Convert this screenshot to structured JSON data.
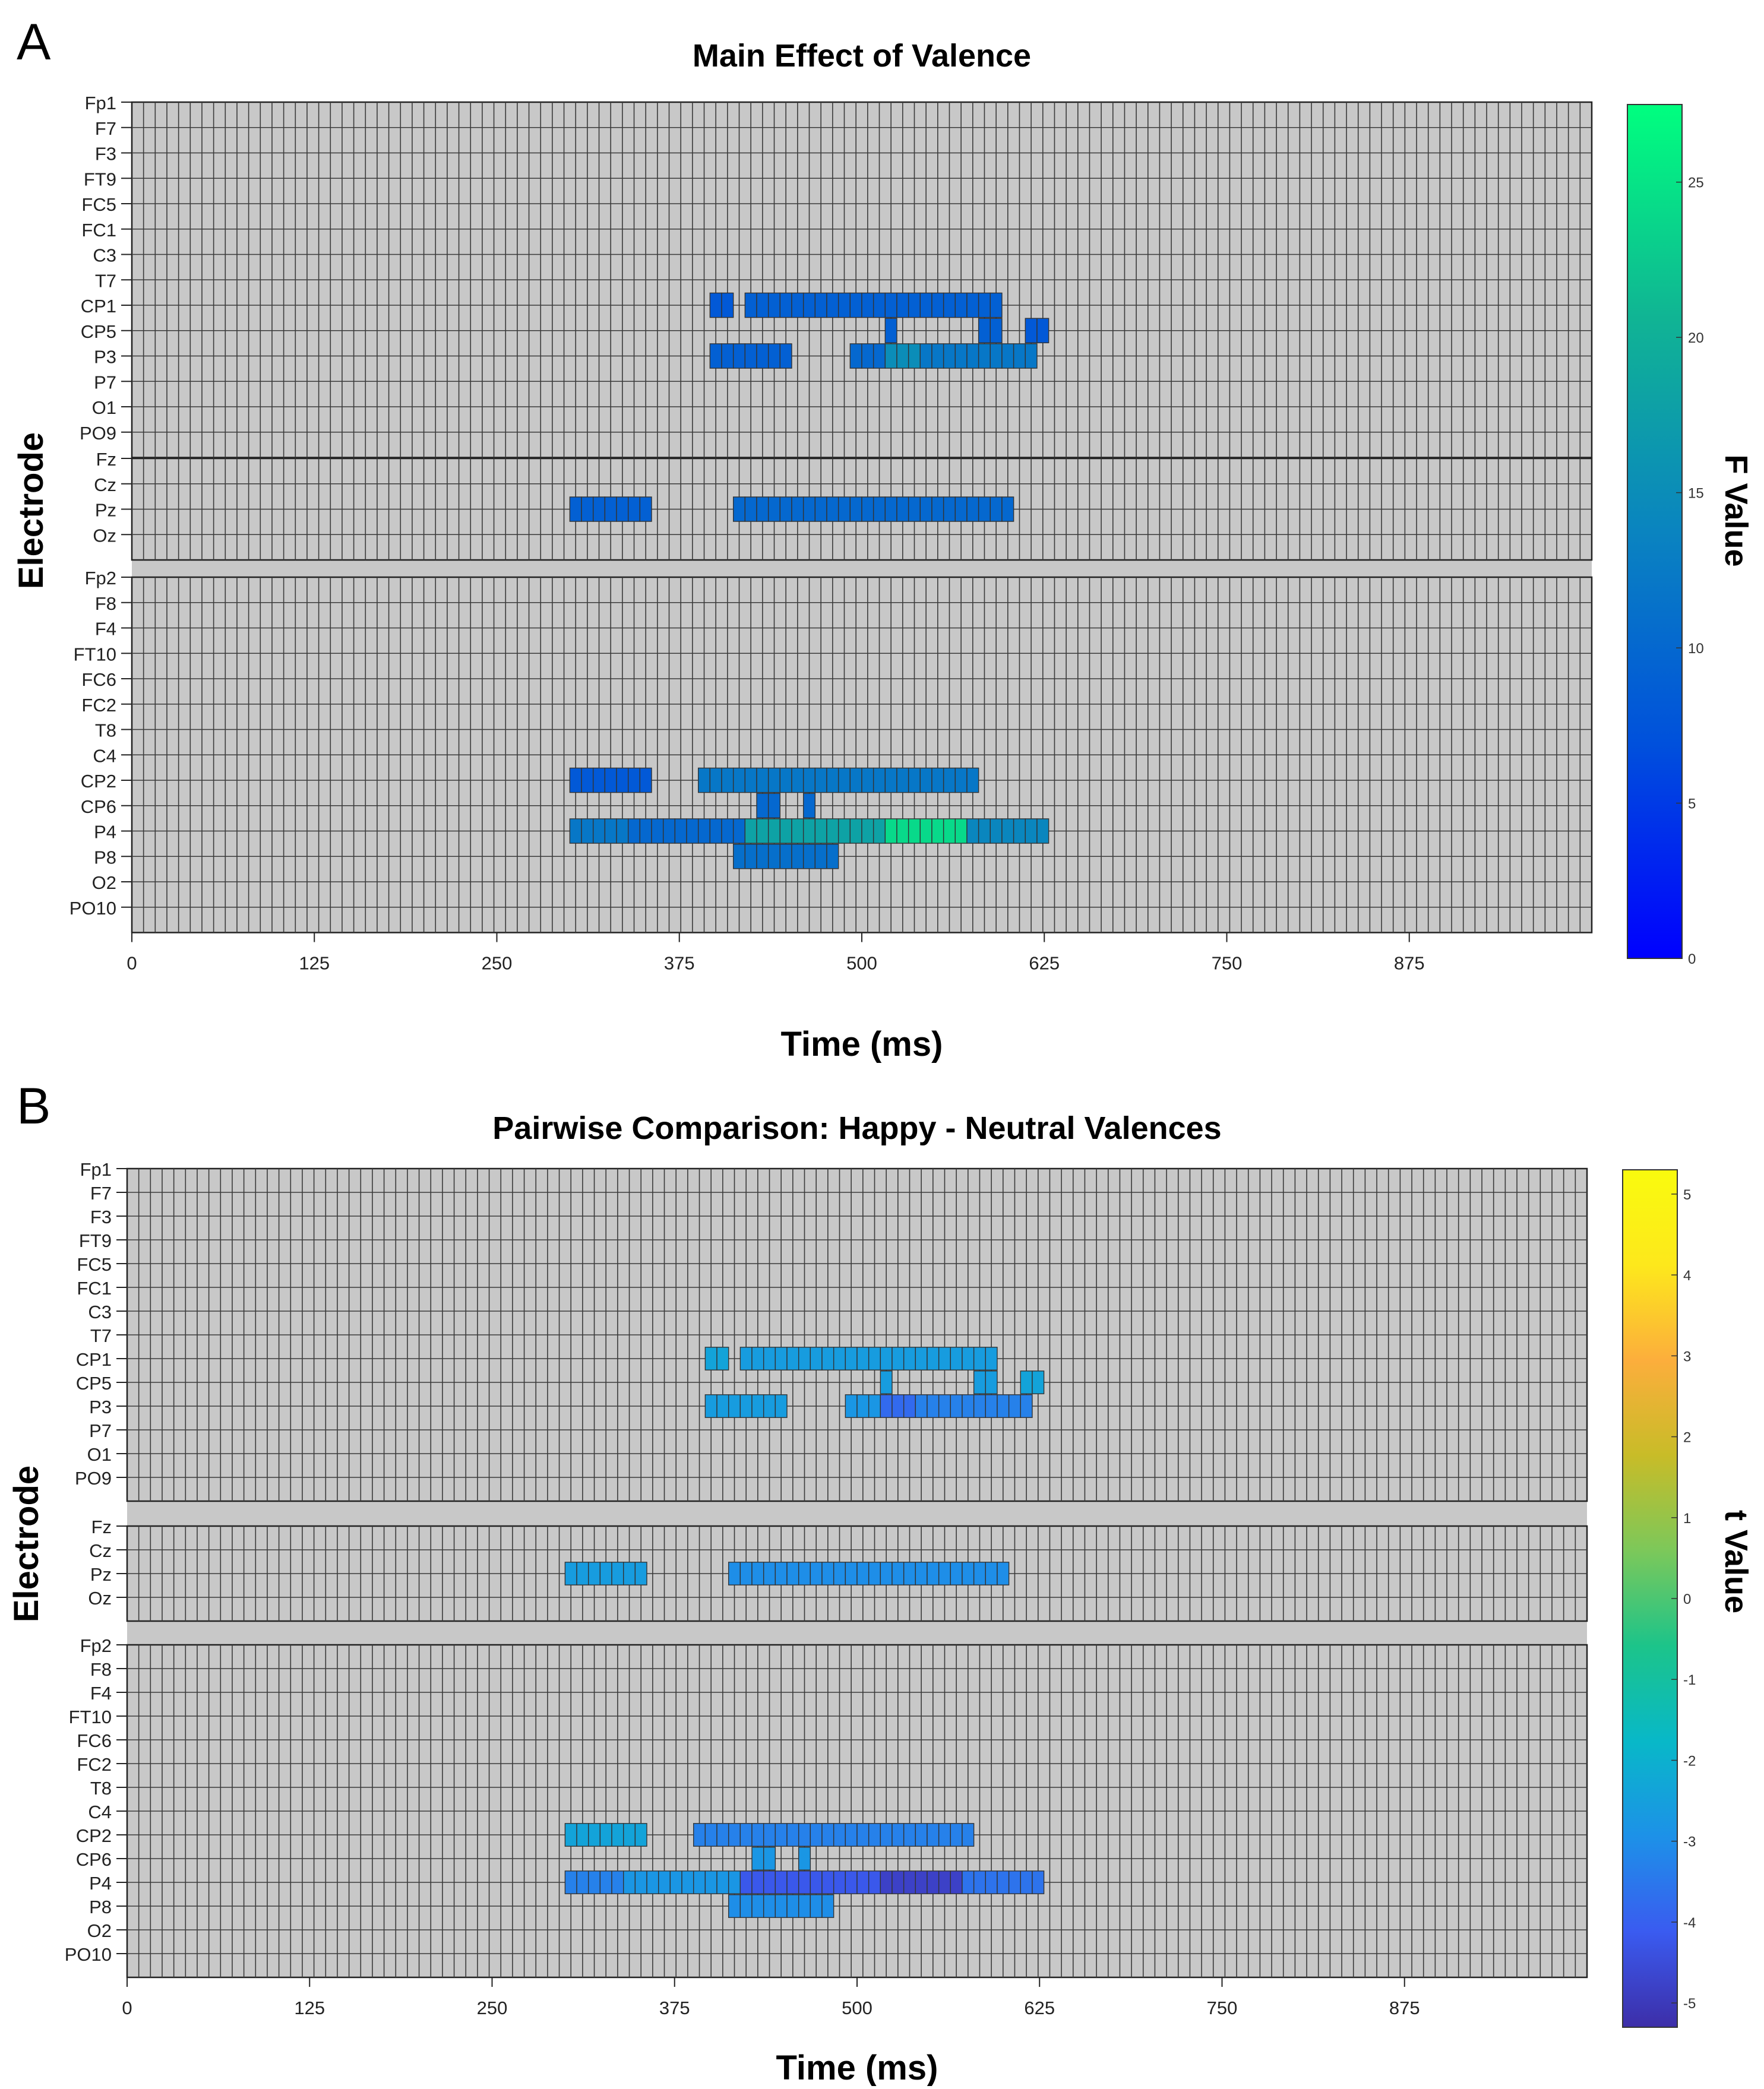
{
  "chart_data": [
    {
      "type": "heatmap",
      "panel_label": "A",
      "title": "Main Effect of Valence",
      "xlabel": "Time (ms)",
      "ylabel": "Electrode",
      "x_ticks": [
        "0",
        "125",
        "250",
        "375",
        "500",
        "625",
        "750",
        "875"
      ],
      "xlim": [
        0,
        1000
      ],
      "time_bin_ms": 8,
      "groups": [
        [
          "Fp1",
          "F7",
          "F3",
          "FT9",
          "FC5",
          "FC1",
          "C3",
          "T7",
          "CP1",
          "CP5",
          "P3",
          "P7",
          "O1",
          "PO9"
        ],
        [
          "Fz",
          "Cz",
          "Pz",
          "Oz"
        ],
        [
          "Fp2",
          "F8",
          "F4",
          "FT10",
          "FC6",
          "FC2",
          "T8",
          "C4",
          "CP2",
          "CP6",
          "P4",
          "P8",
          "O2",
          "PO10"
        ]
      ],
      "colorbar": {
        "label": "F Value",
        "min": 0,
        "max": 27.5,
        "ticks": [
          "0",
          "5",
          "10",
          "15",
          "20",
          "25"
        ],
        "colors": [
          "#0000ff",
          "#0050dc",
          "#0a84c0",
          "#10b494",
          "#00ff7f"
        ]
      },
      "significant": [
        {
          "electrode": "CP1",
          "segments": [
            {
              "t0": 396,
              "t1": 412,
              "value": 8
            },
            {
              "t0": 420,
              "t1": 596,
              "value": 9
            }
          ]
        },
        {
          "electrode": "CP5",
          "segments": [
            {
              "t0": 516,
              "t1": 524,
              "value": 9
            },
            {
              "t0": 580,
              "t1": 596,
              "value": 9
            },
            {
              "t0": 612,
              "t1": 628,
              "value": 8
            }
          ]
        },
        {
          "electrode": "P3",
          "segments": [
            {
              "t0": 396,
              "t1": 452,
              "value": 9
            },
            {
              "t0": 492,
              "t1": 516,
              "value": 10
            },
            {
              "t0": 516,
              "t1": 540,
              "value": 15
            },
            {
              "t0": 540,
              "t1": 620,
              "value": 12
            }
          ]
        },
        {
          "electrode": "Pz",
          "segments": [
            {
              "t0": 300,
              "t1": 356,
              "value": 9
            },
            {
              "t0": 412,
              "t1": 604,
              "value": 10
            }
          ]
        },
        {
          "electrode": "CP2",
          "segments": [
            {
              "t0": 300,
              "t1": 356,
              "value": 8
            },
            {
              "t0": 388,
              "t1": 580,
              "value": 12
            }
          ]
        },
        {
          "electrode": "CP6",
          "segments": [
            {
              "t0": 428,
              "t1": 444,
              "value": 10
            },
            {
              "t0": 460,
              "t1": 468,
              "value": 10
            }
          ]
        },
        {
          "electrode": "P4",
          "segments": [
            {
              "t0": 300,
              "t1": 340,
              "value": 12
            },
            {
              "t0": 340,
              "t1": 420,
              "value": 10
            },
            {
              "t0": 420,
              "t1": 516,
              "value": 18
            },
            {
              "t0": 516,
              "t1": 572,
              "value": 24
            },
            {
              "t0": 572,
              "t1": 628,
              "value": 14
            }
          ]
        },
        {
          "electrode": "P8",
          "segments": [
            {
              "t0": 412,
              "t1": 484,
              "value": 11
            }
          ]
        }
      ]
    },
    {
      "type": "heatmap",
      "panel_label": "B",
      "title": "Pairwise Comparison: Happy - Neutral Valences",
      "xlabel": "Time (ms)",
      "ylabel": "Electrode",
      "x_ticks": [
        "0",
        "125",
        "250",
        "375",
        "500",
        "625",
        "750",
        "875"
      ],
      "xlim": [
        0,
        1000
      ],
      "time_bin_ms": 8,
      "groups": [
        [
          "Fp1",
          "F7",
          "F3",
          "FT9",
          "FC5",
          "FC1",
          "C3",
          "T7",
          "CP1",
          "CP5",
          "P3",
          "P7",
          "O1",
          "PO9"
        ],
        [
          "Fz",
          "Cz",
          "Pz",
          "Oz"
        ],
        [
          "Fp2",
          "F8",
          "F4",
          "FT10",
          "FC6",
          "FC2",
          "T8",
          "C4",
          "CP2",
          "CP6",
          "P4",
          "P8",
          "O2",
          "PO10"
        ]
      ],
      "colorbar": {
        "label": "t Value",
        "min": -5.3,
        "max": 5.3,
        "ticks": [
          "-5",
          "-4",
          "-3",
          "-2",
          "-1",
          "0",
          "1",
          "2",
          "3",
          "4",
          "5"
        ],
        "colors": [
          "#3d2ea8",
          "#3a5bf0",
          "#1d91e8",
          "#08b8c8",
          "#1cc48a",
          "#7cc85a",
          "#c8bc28",
          "#fcae3c",
          "#fde81c",
          "#f9fb0e"
        ]
      },
      "significant": [
        {
          "electrode": "CP1",
          "segments": [
            {
              "t0": 396,
              "t1": 412,
              "value": -2.4
            },
            {
              "t0": 420,
              "t1": 596,
              "value": -2.6
            }
          ]
        },
        {
          "electrode": "CP5",
          "segments": [
            {
              "t0": 516,
              "t1": 524,
              "value": -2.6
            },
            {
              "t0": 580,
              "t1": 596,
              "value": -2.6
            },
            {
              "t0": 612,
              "t1": 628,
              "value": -2.4
            }
          ]
        },
        {
          "electrode": "P3",
          "segments": [
            {
              "t0": 396,
              "t1": 452,
              "value": -2.6
            },
            {
              "t0": 492,
              "t1": 516,
              "value": -2.8
            },
            {
              "t0": 516,
              "t1": 540,
              "value": -3.8
            },
            {
              "t0": 540,
              "t1": 620,
              "value": -3.3
            }
          ]
        },
        {
          "electrode": "Pz",
          "segments": [
            {
              "t0": 300,
              "t1": 356,
              "value": -2.6
            },
            {
              "t0": 412,
              "t1": 604,
              "value": -3.0
            }
          ]
        },
        {
          "electrode": "CP2",
          "segments": [
            {
              "t0": 300,
              "t1": 356,
              "value": -2.4
            },
            {
              "t0": 388,
              "t1": 580,
              "value": -3.3
            }
          ]
        },
        {
          "electrode": "CP6",
          "segments": [
            {
              "t0": 428,
              "t1": 444,
              "value": -2.8
            },
            {
              "t0": 460,
              "t1": 468,
              "value": -2.8
            }
          ]
        },
        {
          "electrode": "P4",
          "segments": [
            {
              "t0": 300,
              "t1": 340,
              "value": -3.3
            },
            {
              "t0": 340,
              "t1": 420,
              "value": -2.8
            },
            {
              "t0": 420,
              "t1": 516,
              "value": -4.2
            },
            {
              "t0": 516,
              "t1": 572,
              "value": -4.8
            },
            {
              "t0": 572,
              "t1": 628,
              "value": -3.6
            }
          ]
        },
        {
          "electrode": "P8",
          "segments": [
            {
              "t0": 412,
              "t1": 484,
              "value": -3.0
            }
          ]
        }
      ]
    }
  ]
}
